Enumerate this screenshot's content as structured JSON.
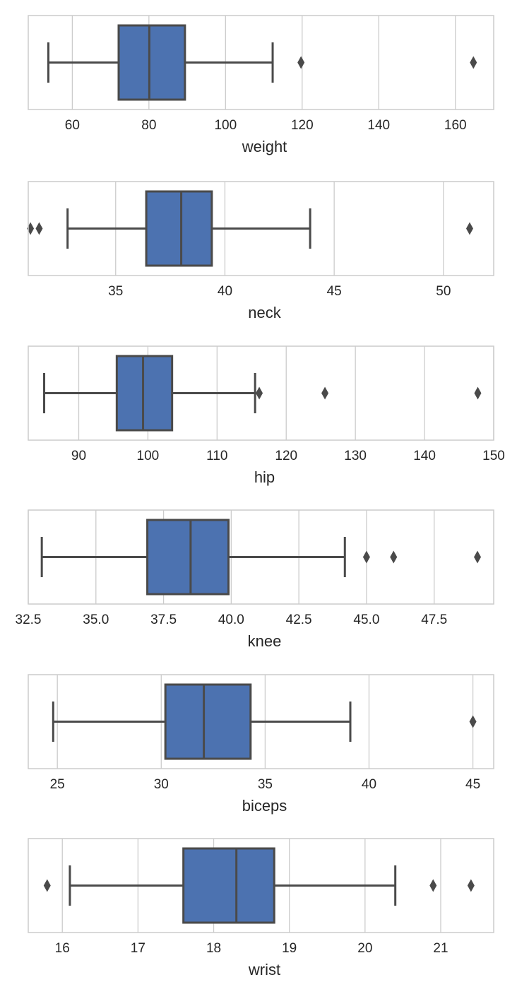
{
  "colors": {
    "box_fill": "#4c72b0",
    "line": "#4a4a4a",
    "grid": "#cccccc",
    "frame": "#cccccc",
    "background": "#ffffff"
  },
  "chart_data": [
    {
      "type": "box",
      "orientation": "horizontal",
      "xlabel": "weight",
      "xlim": [
        48.5,
        170
      ],
      "xticks": [
        60,
        80,
        100,
        120,
        140,
        160
      ],
      "tick_labels": [
        "60",
        "80",
        "100",
        "120",
        "140",
        "160"
      ],
      "whisker_low": 53.75,
      "q1": 72.1,
      "median": 80.1,
      "q3": 89.4,
      "whisker_high": 112.3,
      "outliers": [
        119.7,
        164.7
      ],
      "grid": true
    },
    {
      "type": "box",
      "orientation": "horizontal",
      "xlabel": "neck",
      "xlim": [
        31.0,
        52.3
      ],
      "xticks": [
        35,
        40,
        45,
        50
      ],
      "tick_labels": [
        "35",
        "40",
        "45",
        "50"
      ],
      "whisker_low": 32.8,
      "q1": 36.4,
      "median": 38.0,
      "q3": 39.4,
      "whisker_high": 43.9,
      "outliers": [
        31.1,
        31.5,
        51.2
      ],
      "grid": true
    },
    {
      "type": "box",
      "orientation": "horizontal",
      "xlabel": "hip",
      "xlim": [
        82.7,
        150
      ],
      "xticks": [
        90,
        100,
        110,
        120,
        130,
        140,
        150
      ],
      "tick_labels": [
        "90",
        "100",
        "110",
        "120",
        "130",
        "140",
        "150"
      ],
      "whisker_low": 85.0,
      "q1": 95.5,
      "median": 99.3,
      "q3": 103.5,
      "whisker_high": 115.5,
      "outliers": [
        116.1,
        125.6,
        147.7
      ],
      "grid": true
    },
    {
      "type": "box",
      "orientation": "horizontal",
      "xlabel": "knee",
      "xlim": [
        32.5,
        49.7
      ],
      "xticks": [
        32.5,
        35.0,
        37.5,
        40.0,
        42.5,
        45.0,
        47.5
      ],
      "tick_labels": [
        "32.5",
        "35.0",
        "37.5",
        "40.0",
        "42.5",
        "45.0",
        "47.5"
      ],
      "whisker_low": 33.0,
      "q1": 36.9,
      "median": 38.5,
      "q3": 39.9,
      "whisker_high": 44.2,
      "outliers": [
        45.0,
        46.0,
        49.1
      ],
      "grid": true
    },
    {
      "type": "box",
      "orientation": "horizontal",
      "xlabel": "biceps",
      "xlim": [
        23.6,
        46.0
      ],
      "xticks": [
        25,
        30,
        35,
        40,
        45
      ],
      "tick_labels": [
        "25",
        "30",
        "35",
        "40",
        "45"
      ],
      "whisker_low": 24.8,
      "q1": 30.2,
      "median": 32.05,
      "q3": 34.3,
      "whisker_high": 39.1,
      "outliers": [
        45.0
      ],
      "grid": true
    },
    {
      "type": "box",
      "orientation": "horizontal",
      "xlabel": "wrist",
      "xlim": [
        15.55,
        21.7
      ],
      "xticks": [
        16,
        17,
        18,
        19,
        20,
        21
      ],
      "tick_labels": [
        "16",
        "17",
        "18",
        "19",
        "20",
        "21"
      ],
      "whisker_low": 16.1,
      "q1": 17.6,
      "median": 18.3,
      "q3": 18.8,
      "whisker_high": 20.4,
      "outliers": [
        15.8,
        20.9,
        21.4
      ],
      "grid": true
    }
  ]
}
